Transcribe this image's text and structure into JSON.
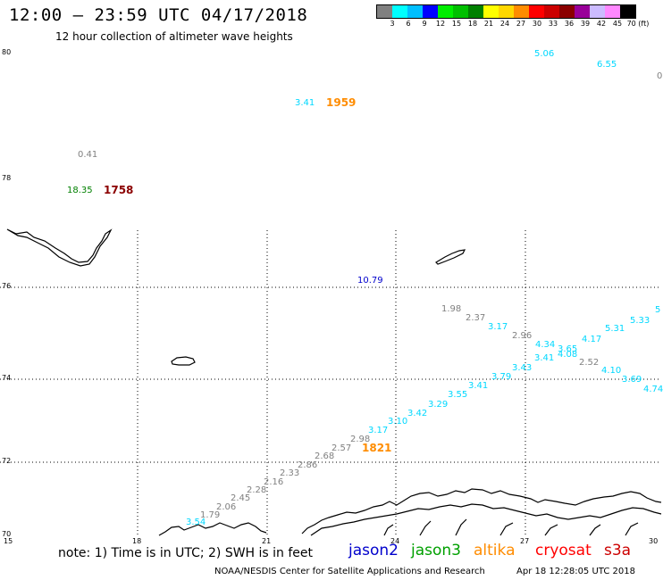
{
  "header": {
    "title": "12:00 – 23:59 UTC 04/17/2018",
    "subtitle": "12 hour collection of altimeter wave heights"
  },
  "colorbar": {
    "colors": [
      "#808080",
      "#00ffff",
      "#00bfff",
      "#0000ff",
      "#00ee00",
      "#00c000",
      "#008000",
      "#ffff00",
      "#ffd700",
      "#ff8c00",
      "#ff0000",
      "#cc0000",
      "#8b0000",
      "#990099",
      "#ccbbff",
      "#ff88ff",
      "#000000"
    ],
    "labels": [
      "3",
      "6",
      "9",
      "12",
      "15",
      "18",
      "21",
      "24",
      "27",
      "30",
      "33",
      "36",
      "39",
      "42",
      "45",
      "70 (ft)"
    ]
  },
  "axes": {
    "lat_labels": [
      "80",
      "78",
      "76",
      "74",
      "72",
      "70"
    ],
    "lon_labels": [
      "15",
      "18",
      "21",
      "24",
      "27",
      "30"
    ]
  },
  "observations": [
    {
      "v": "5.06",
      "c": "#00d8ff"
    },
    {
      "v": "6.55",
      "c": "#00d8ff"
    },
    {
      "v": "0",
      "c": "#808080"
    },
    {
      "v": "3.41",
      "c": "#00d8ff"
    },
    {
      "v": "0.41",
      "c": "#808080"
    },
    {
      "v": "18.35",
      "c": "#008000"
    },
    {
      "v": "10.79",
      "c": "#0000cc"
    },
    {
      "v": "1.98",
      "c": "#808080"
    },
    {
      "v": "2.37",
      "c": "#808080"
    },
    {
      "v": "3.17",
      "c": "#00d8ff"
    },
    {
      "v": "2.96",
      "c": "#808080"
    },
    {
      "v": "4.34",
      "c": "#00d8ff"
    },
    {
      "v": "3.65",
      "c": "#00d8ff"
    },
    {
      "v": "4.08",
      "c": "#00d8ff"
    },
    {
      "v": "3.41",
      "c": "#00d8ff"
    },
    {
      "v": "3.43",
      "c": "#00d8ff"
    },
    {
      "v": "2.52",
      "c": "#808080"
    },
    {
      "v": "4.17",
      "c": "#00d8ff"
    },
    {
      "v": "5.31",
      "c": "#00d8ff"
    },
    {
      "v": "5.33",
      "c": "#00d8ff"
    },
    {
      "v": "5",
      "c": "#00d8ff"
    },
    {
      "v": "4.10",
      "c": "#00d8ff"
    },
    {
      "v": "3.69",
      "c": "#00d8ff"
    },
    {
      "v": "4.74",
      "c": "#00d8ff"
    },
    {
      "v": "3.79",
      "c": "#00d8ff"
    },
    {
      "v": "3.41",
      "c": "#00d8ff"
    },
    {
      "v": "3.55",
      "c": "#00d8ff"
    },
    {
      "v": "3.29",
      "c": "#00d8ff"
    },
    {
      "v": "3.42",
      "c": "#00d8ff"
    },
    {
      "v": "3.10",
      "c": "#00d8ff"
    },
    {
      "v": "3.17",
      "c": "#00d8ff"
    },
    {
      "v": "2.98",
      "c": "#808080"
    },
    {
      "v": "2.57",
      "c": "#808080"
    },
    {
      "v": "2.68",
      "c": "#808080"
    },
    {
      "v": "2.86",
      "c": "#808080"
    },
    {
      "v": "2.33",
      "c": "#808080"
    },
    {
      "v": "2.16",
      "c": "#808080"
    },
    {
      "v": "2.28",
      "c": "#808080"
    },
    {
      "v": "2.45",
      "c": "#808080"
    },
    {
      "v": "2.06",
      "c": "#808080"
    },
    {
      "v": "1.79",
      "c": "#808080"
    },
    {
      "v": "3.54",
      "c": "#00d8ff"
    }
  ],
  "timestamps": [
    {
      "t": "1959",
      "c": "#ff8c00"
    },
    {
      "t": "1758",
      "c": "#8b0000"
    },
    {
      "t": "1821",
      "c": "#ff8c00"
    }
  ],
  "footer": {
    "note": "note:  1) Time is in UTC;  2) SWH is in feet",
    "satellites": [
      {
        "name": "jason2",
        "c": "#0000cc"
      },
      {
        "name": "jason3",
        "c": "#00a000"
      },
      {
        "name": "altika",
        "c": "#ff8c00"
      },
      {
        "name": "cryosat",
        "c": "#ff0000"
      },
      {
        "name": "s3a",
        "c": "#cc0000"
      }
    ],
    "credit": "NOAA/NESDIS Center for Satellite Applications and Research",
    "generated": "Apr 18 12:28:05 UTC 2018"
  }
}
